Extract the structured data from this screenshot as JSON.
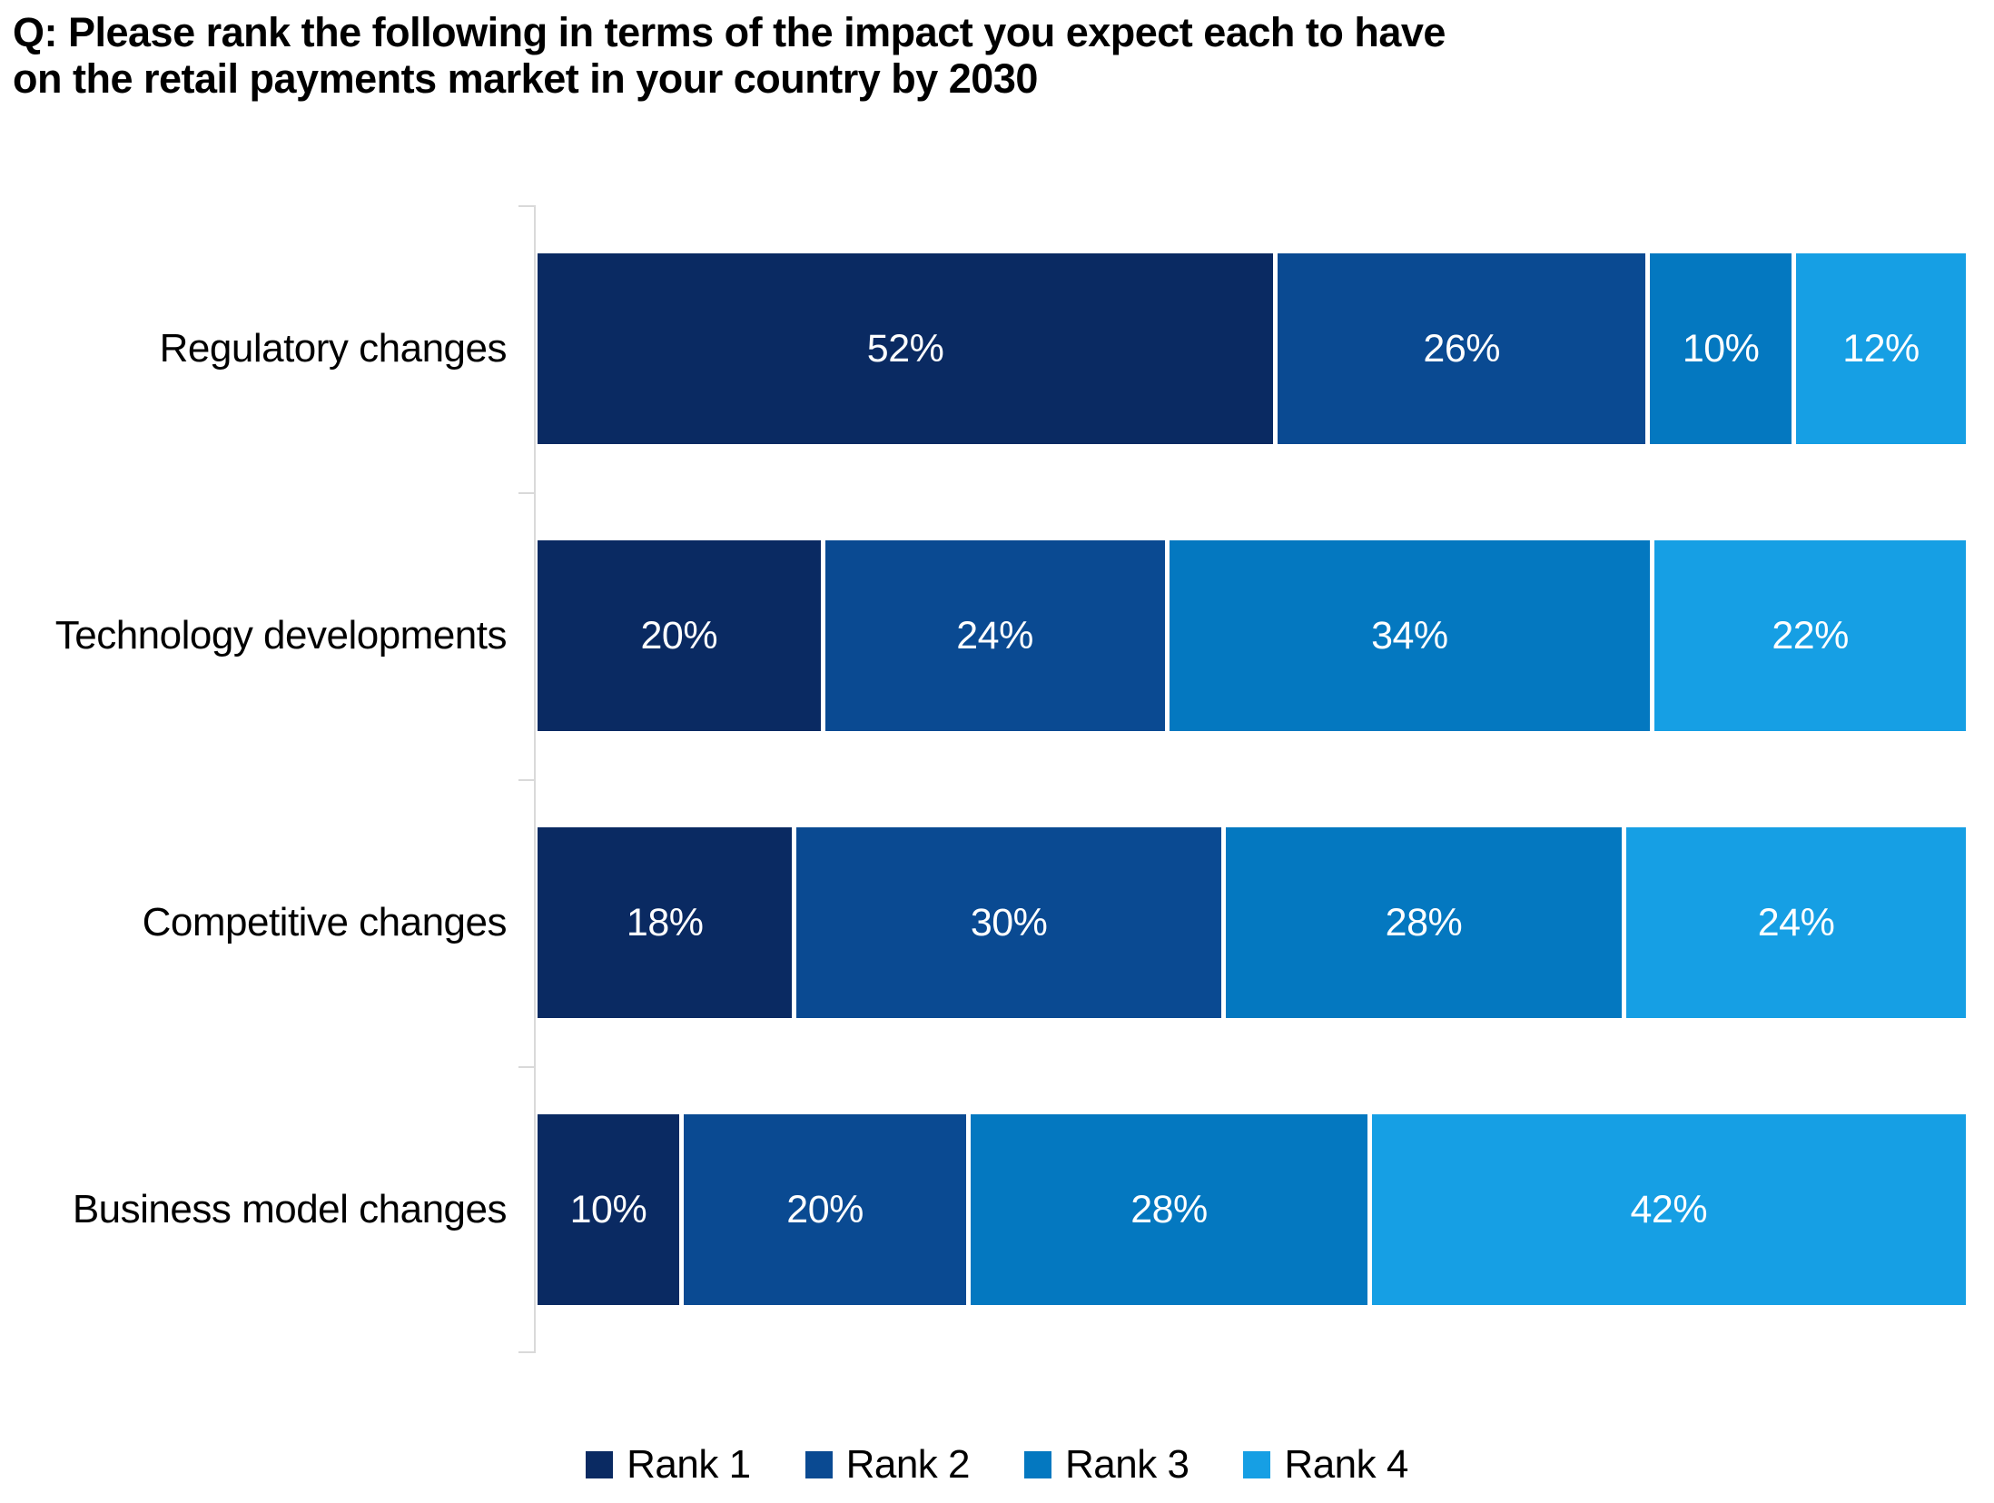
{
  "title": {
    "line1": "Q: Please rank the following in terms of the impact you expect each to have",
    "line2": "on the retail payments market in your country by 2030"
  },
  "chart_data": {
    "type": "bar",
    "variant": "horizontal-stacked-100",
    "title": "Q: Please rank the following in terms of the impact you expect each to have on the retail payments market in your country by 2030",
    "categories": [
      "Regulatory changes",
      "Technology developments",
      "Competitive changes",
      "Business model changes"
    ],
    "series": [
      {
        "name": "Rank 1",
        "color": "#0a2a62",
        "values": [
          52,
          20,
          18,
          10
        ]
      },
      {
        "name": "Rank 2",
        "color": "#0a4a92",
        "values": [
          26,
          24,
          30,
          20
        ]
      },
      {
        "name": "Rank 3",
        "color": "#0478c0",
        "values": [
          10,
          34,
          28,
          28
        ]
      },
      {
        "name": "Rank 4",
        "color": "#169fe4",
        "values": [
          12,
          22,
          24,
          42
        ]
      }
    ],
    "data_labels": [
      [
        "52%",
        "26%",
        "10%",
        "12%"
      ],
      [
        "20%",
        "24%",
        "34%",
        "22%"
      ],
      [
        "18%",
        "30%",
        "28%",
        "24%"
      ],
      [
        "10%",
        "20%",
        "28%",
        "42%"
      ]
    ],
    "value_label_suffix": "%",
    "xlim": [
      0,
      100
    ],
    "grid": false,
    "legend_position": "bottom-center",
    "legend_entries": [
      "Rank 1",
      "Rank 2",
      "Rank 3",
      "Rank 4"
    ],
    "axis_color": "#d9d9d9",
    "label_text_color": "#ffffff",
    "category_text_color": "#000000"
  }
}
